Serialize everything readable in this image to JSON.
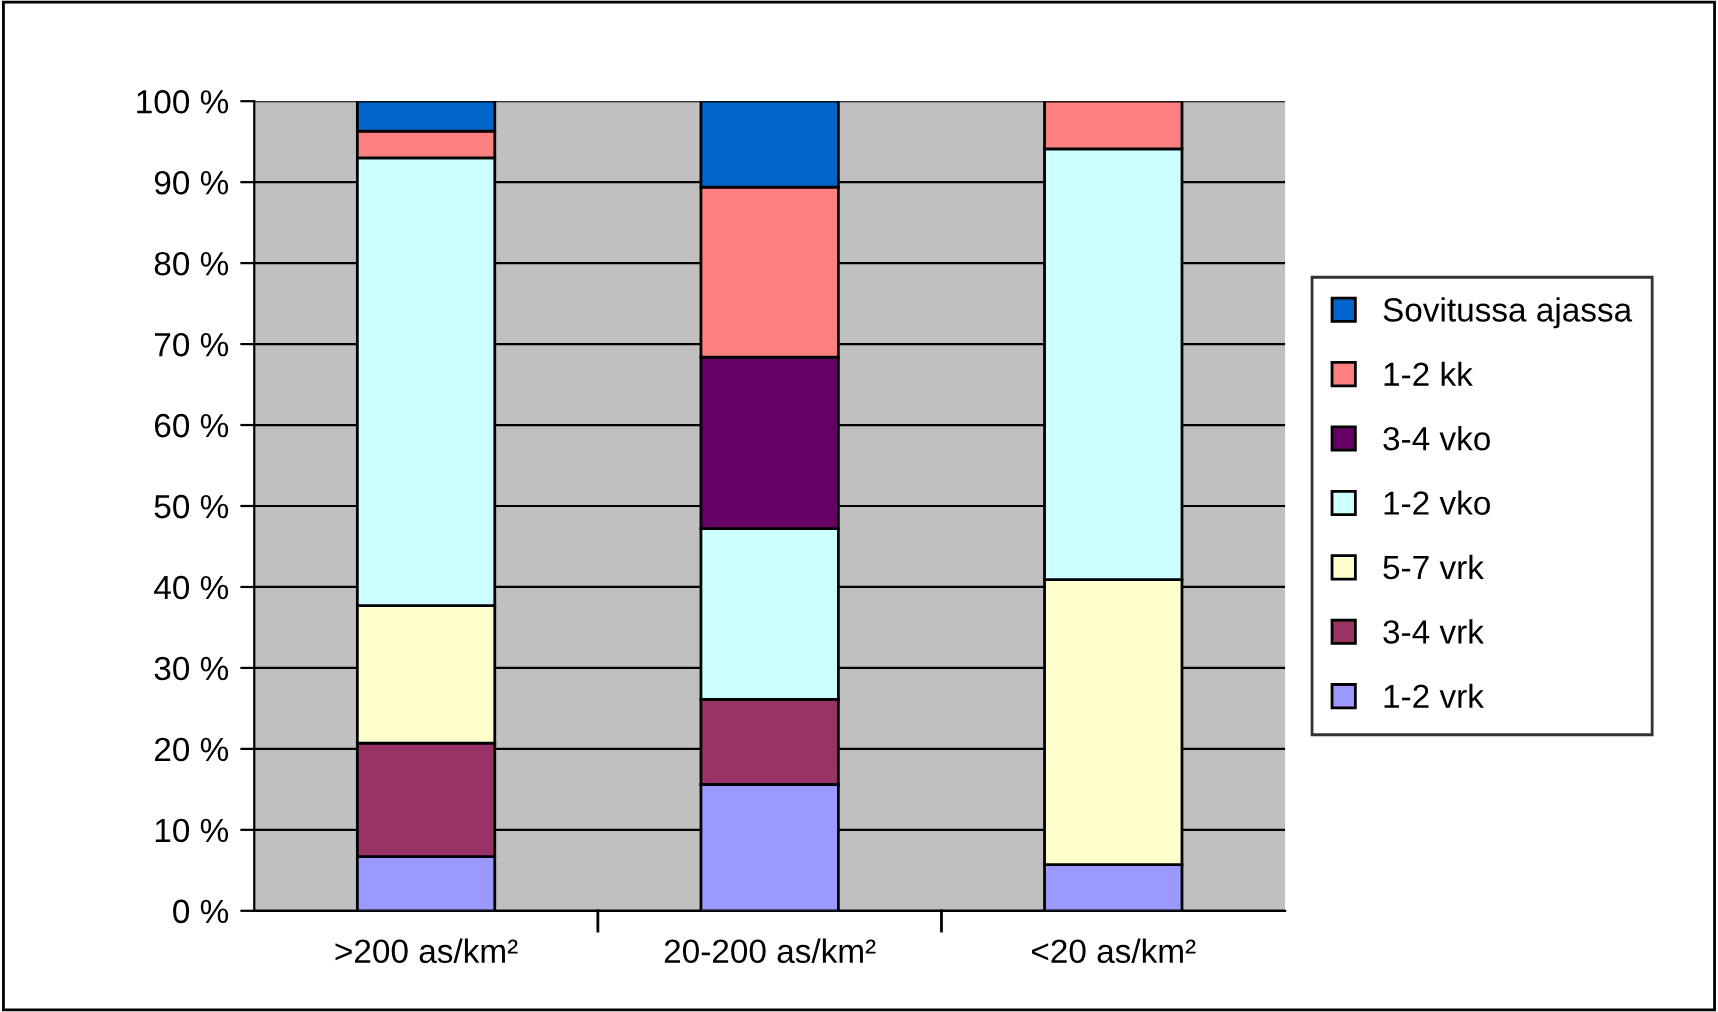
{
  "chart_data": {
    "type": "bar",
    "stacked": true,
    "categories": [
      ">200 as/km²",
      "20-200 as/km²",
      "<20 as/km²"
    ],
    "series": [
      {
        "name": "1-2 vrk",
        "color": "#9999ff",
        "values": [
          6.7,
          15.6,
          5.7
        ]
      },
      {
        "name": "3-4 vrk",
        "color": "#993366",
        "values": [
          14.0,
          10.5,
          null
        ]
      },
      {
        "name": "5-7 vrk",
        "color": "#ffffcc",
        "values": [
          17.0,
          null,
          35.2
        ]
      },
      {
        "name": "1-2 vko",
        "color": "#ccffff",
        "values": [
          55.3,
          21.1,
          53.2
        ]
      },
      {
        "name": "3-4 vko",
        "color": "#660066",
        "values": [
          null,
          21.2,
          null
        ]
      },
      {
        "name": "1-2 kk",
        "color": "#ff8080",
        "values": [
          3.3,
          21.0,
          5.9
        ]
      },
      {
        "name": "Sovitussa ajassa",
        "color": "#0066cc",
        "values": [
          3.7,
          10.6,
          null
        ]
      }
    ],
    "ylim": [
      0,
      100
    ],
    "yticks": [
      {
        "value": 0,
        "label": "0 %"
      },
      {
        "value": 10,
        "label": "10 %"
      },
      {
        "value": 20,
        "label": "20 %"
      },
      {
        "value": 30,
        "label": "30 %"
      },
      {
        "value": 40,
        "label": "40 %"
      },
      {
        "value": 50,
        "label": "50 %"
      },
      {
        "value": 60,
        "label": "60 %"
      },
      {
        "value": 70,
        "label": "70 %"
      },
      {
        "value": 80,
        "label": "80 %"
      },
      {
        "value": 90,
        "label": "90 %"
      },
      {
        "value": 100,
        "label": "100 %"
      }
    ],
    "grid": "y",
    "legend": "right"
  }
}
